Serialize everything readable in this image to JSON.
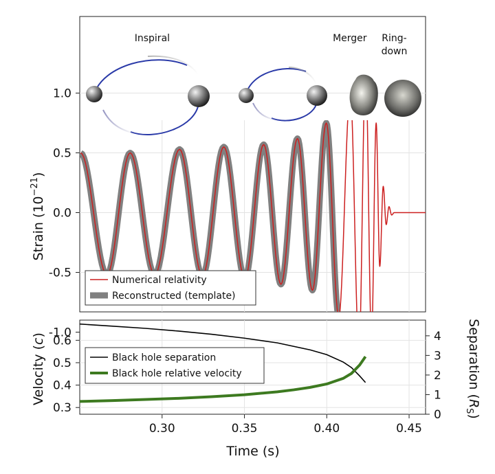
{
  "chart_data": [
    {
      "type": "line",
      "panel": "strain",
      "xlim": [
        0.25,
        0.46
      ],
      "ylim": [
        -1.5,
        1.5
      ],
      "ylabel": "Strain (10",
      "ylabel_exp": "−21",
      "ylabel_close": ")",
      "yticks": [
        {
          "value": 1.0,
          "label": "1.0"
        },
        {
          "value": 0.5,
          "label": "0.5"
        },
        {
          "value": 0.0,
          "label": "0.0"
        },
        {
          "value": -0.5,
          "label": "-0.5"
        },
        {
          "value": -1.0,
          "label": "-1.0"
        }
      ],
      "grid": true,
      "legend_position": "bottom-left",
      "stage_labels": [
        {
          "text": "Inspiral",
          "x": 0.294,
          "y_row": 1
        },
        {
          "text": "Merger",
          "x": 0.414,
          "y_row": 1
        },
        {
          "text": "Ring-",
          "x": 0.441,
          "y_row": 1
        },
        {
          "text": "down",
          "x": 0.441,
          "y_row": 2
        }
      ],
      "series": [
        {
          "name": "Numerical relativity",
          "color": "#cc1f1f",
          "peaks": [
            {
              "t": 0.2505,
              "h": 0.5
            },
            {
              "t": 0.2665,
              "h": -0.52
            },
            {
              "t": 0.2806,
              "h": 0.5
            },
            {
              "t": 0.2955,
              "h": -0.52
            },
            {
              "t": 0.3106,
              "h": 0.53
            },
            {
              "t": 0.3245,
              "h": -0.53
            },
            {
              "t": 0.3375,
              "h": 0.55
            },
            {
              "t": 0.3503,
              "h": -0.55
            },
            {
              "t": 0.3617,
              "h": 0.57
            },
            {
              "t": 0.3722,
              "h": -0.6
            },
            {
              "t": 0.3822,
              "h": 0.62
            },
            {
              "t": 0.3913,
              "h": -0.65
            },
            {
              "t": 0.3997,
              "h": 0.75
            },
            {
              "t": 0.4073,
              "h": -0.87
            },
            {
              "t": 0.4143,
              "h": 1.0
            },
            {
              "t": 0.4196,
              "h": -1.15
            },
            {
              "t": 0.4236,
              "h": 1.22
            },
            {
              "t": 0.4272,
              "h": -1.05
            },
            {
              "t": 0.43,
              "h": 0.75
            },
            {
              "t": 0.4322,
              "h": -0.45
            },
            {
              "t": 0.4343,
              "h": 0.22
            },
            {
              "t": 0.4361,
              "h": -0.1
            },
            {
              "t": 0.4378,
              "h": 0.05
            },
            {
              "t": 0.4394,
              "h": -0.02
            },
            {
              "t": 0.441,
              "h": 0.0
            },
            {
              "t": 0.46,
              "h": 0.0
            }
          ]
        },
        {
          "name": "Reconstructed (template)",
          "color": "#808080",
          "t_end": 0.4073
        }
      ]
    },
    {
      "type": "line",
      "panel": "velocity-separation",
      "xlim": [
        0.25,
        0.46
      ],
      "xlabel": "Time (s)",
      "xticks": [
        {
          "value": 0.3,
          "label": "0.30"
        },
        {
          "value": 0.35,
          "label": "0.35"
        },
        {
          "value": 0.4,
          "label": "0.40"
        },
        {
          "value": 0.45,
          "label": "0.45"
        }
      ],
      "ylim_left": [
        0.27,
        0.69
      ],
      "ylabel_left": "Velocity (",
      "ylabel_left_unit": "c",
      "ylabel_left_close": ")",
      "yticks_left": [
        {
          "value": 0.6,
          "label": "0.6"
        },
        {
          "value": 0.5,
          "label": "0.5"
        },
        {
          "value": 0.4,
          "label": "0.4"
        },
        {
          "value": 0.3,
          "label": "0.3"
        }
      ],
      "ylim_right": [
        0,
        4.8
      ],
      "ylabel_right": "Separation (",
      "ylabel_right_unit": "R",
      "ylabel_right_sub": "S",
      "ylabel_right_close": ")",
      "yticks_right": [
        {
          "value": 4,
          "label": "4"
        },
        {
          "value": 3,
          "label": "3"
        },
        {
          "value": 2,
          "label": "2"
        },
        {
          "value": 1,
          "label": "1"
        },
        {
          "value": 0,
          "label": "0"
        }
      ],
      "grid": true,
      "legend_position": "top-left",
      "series": [
        {
          "name": "Black hole separation",
          "axis": "right",
          "color": "#000000",
          "x": [
            0.25,
            0.27,
            0.29,
            0.31,
            0.33,
            0.35,
            0.37,
            0.39,
            0.4,
            0.41,
            0.415,
            0.42,
            0.4235
          ],
          "y": [
            4.6,
            4.49,
            4.38,
            4.24,
            4.08,
            3.88,
            3.64,
            3.28,
            3.04,
            2.66,
            2.38,
            1.95,
            1.62
          ]
        },
        {
          "name": "Black hole relative velocity",
          "axis": "left",
          "color": "#3d7a20",
          "x": [
            0.25,
            0.27,
            0.29,
            0.31,
            0.33,
            0.35,
            0.37,
            0.38,
            0.39,
            0.4,
            0.41,
            0.415,
            0.42,
            0.4235
          ],
          "y": [
            0.327,
            0.331,
            0.336,
            0.341,
            0.348,
            0.357,
            0.37,
            0.379,
            0.39,
            0.405,
            0.43,
            0.452,
            0.49,
            0.527
          ]
        }
      ]
    }
  ]
}
